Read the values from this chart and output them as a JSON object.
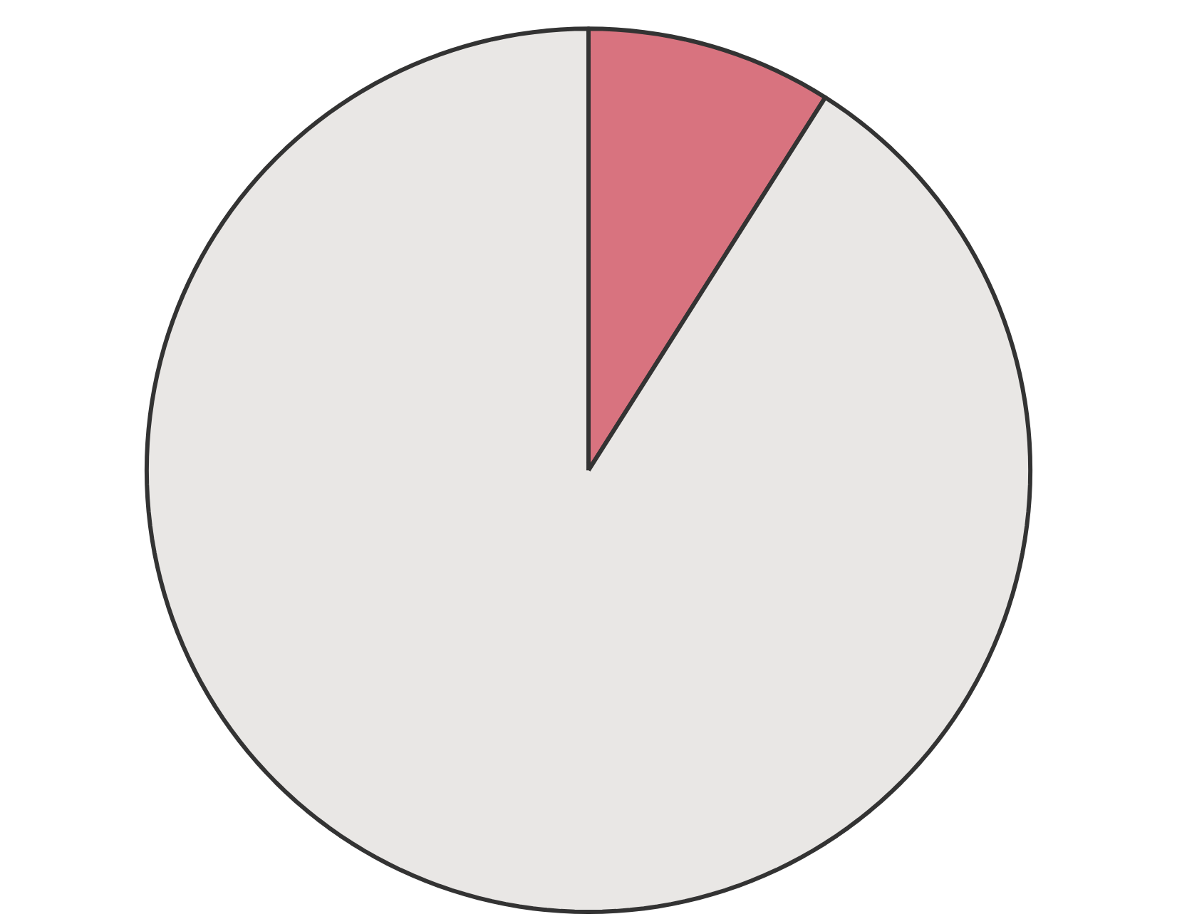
{
  "chart_data": {
    "type": "pie",
    "categories": [
      null,
      null
    ],
    "values": [
      9,
      91
    ],
    "colors": [
      "#d8737f",
      "#e9e7e5"
    ]
  }
}
